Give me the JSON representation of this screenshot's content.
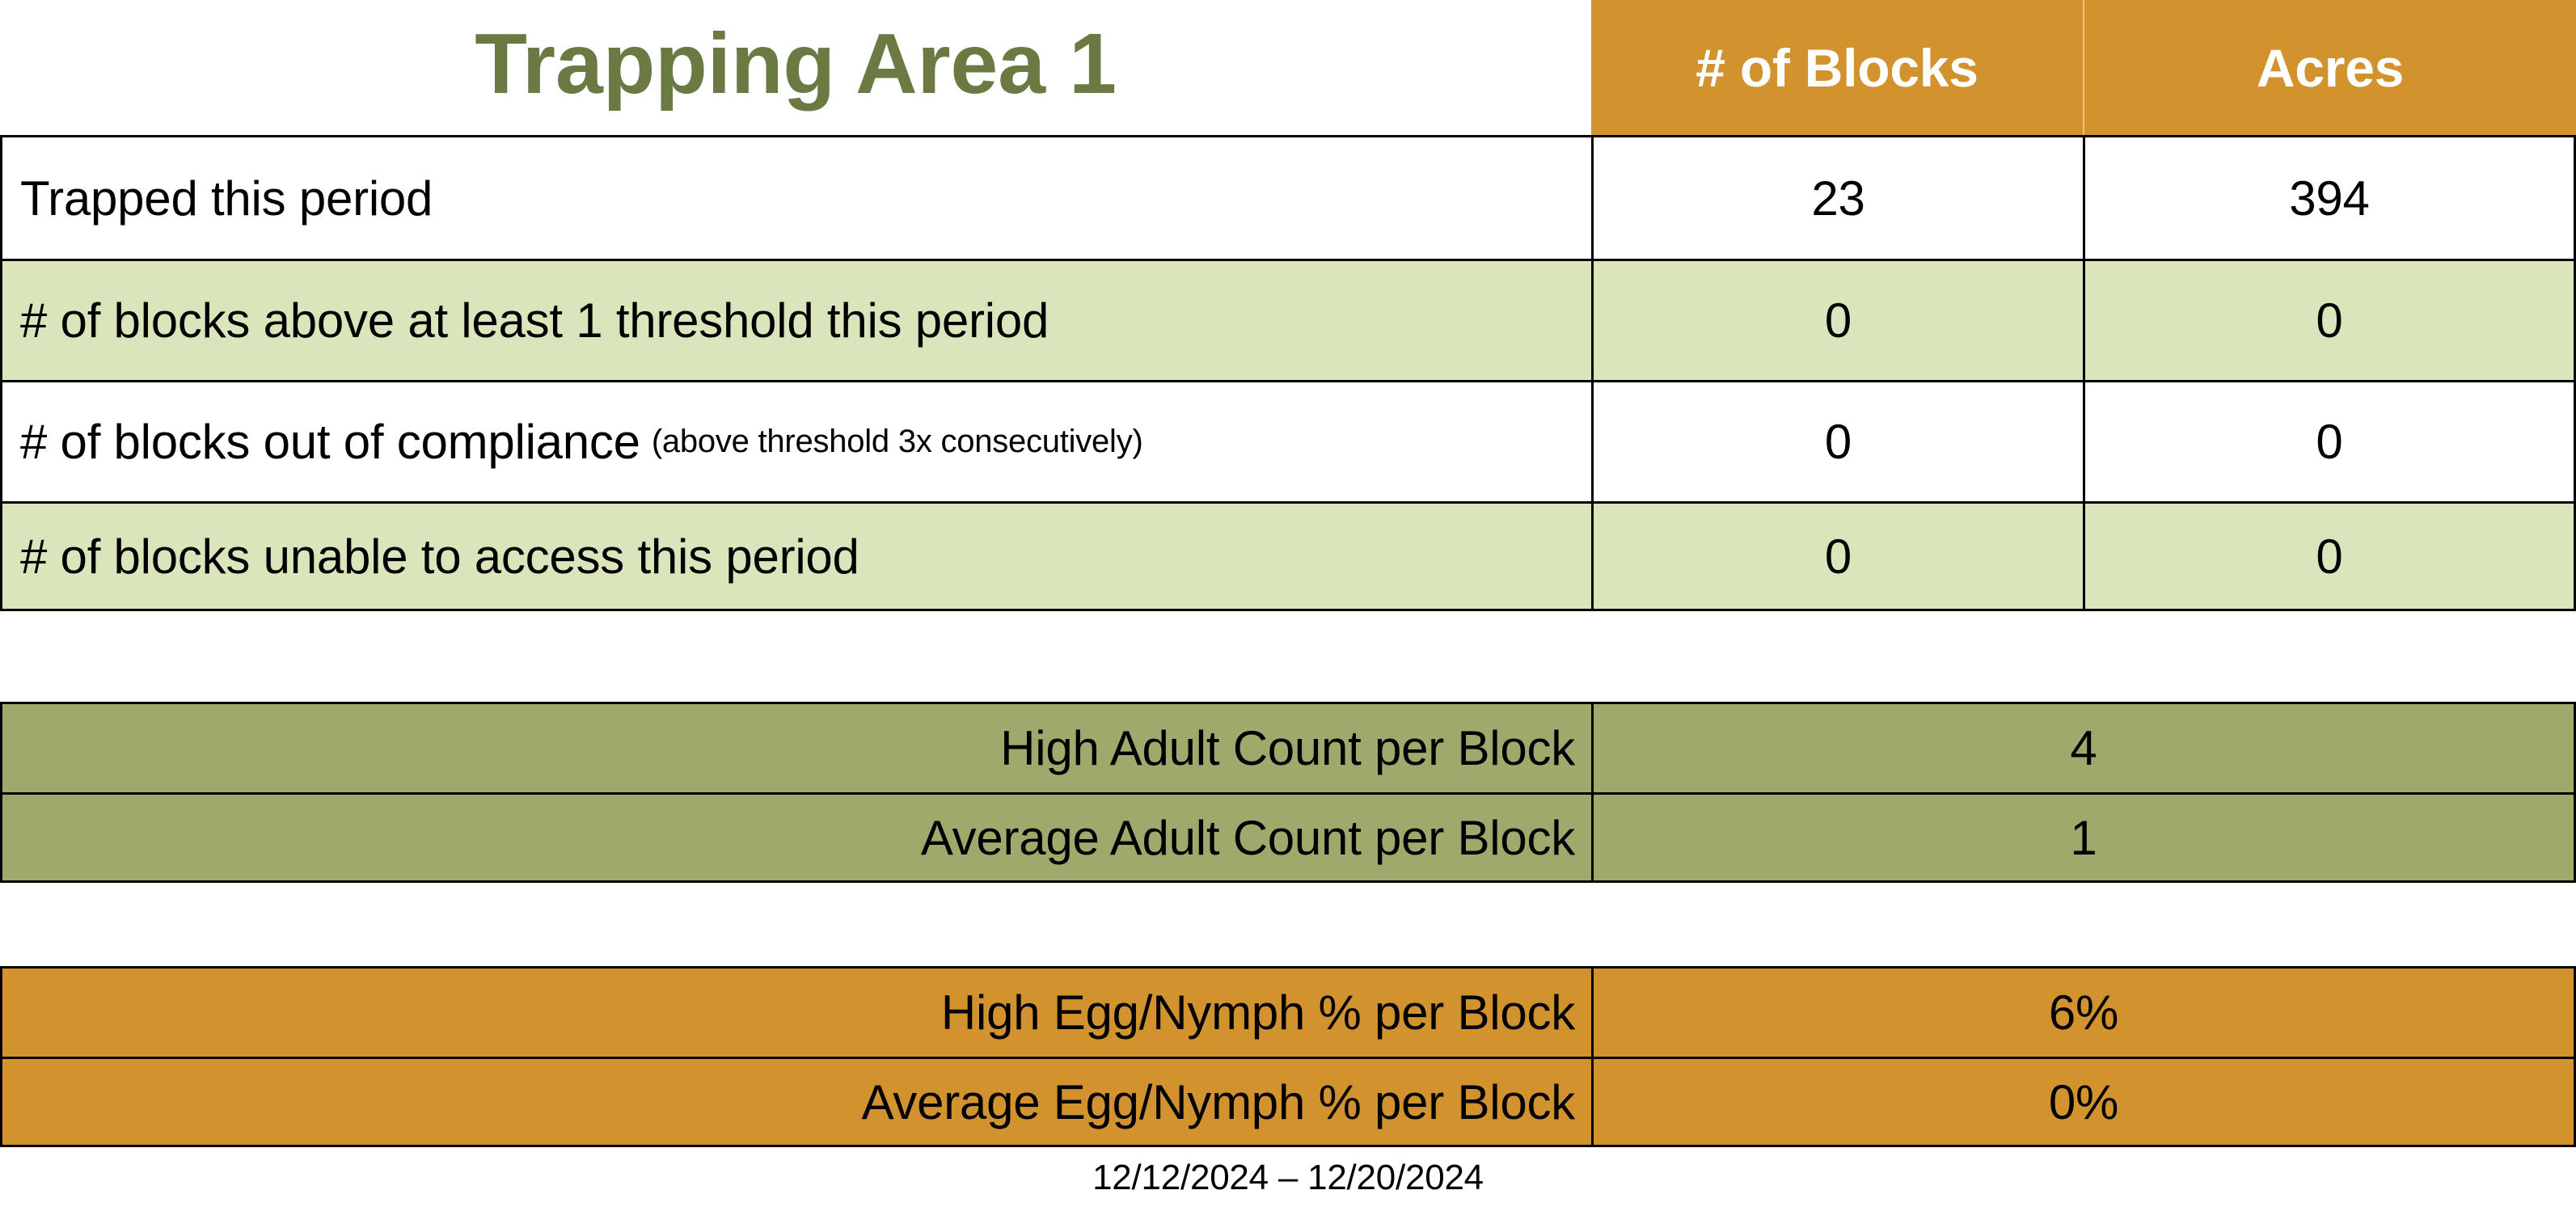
{
  "colors": {
    "orange": "#D2922E",
    "light-green": "#DAE5BB",
    "olive": "#9DAA6C",
    "title-green": "#6B7A43",
    "header-text": "#FFFFFF",
    "border": "#000000",
    "text": "#000000"
  },
  "header": {
    "title": "Trapping Area 1",
    "col_blocks": "# of Blocks",
    "col_acres": "Acres"
  },
  "summary_table": {
    "rows": [
      {
        "label": "Trapped this period",
        "note": "",
        "blocks": "23",
        "acres": "394"
      },
      {
        "label": "# of blocks above at least 1 threshold this period",
        "note": "",
        "blocks": "0",
        "acres": "0"
      },
      {
        "label": "# of blocks out of compliance",
        "note": "(above threshold 3x consecutively)",
        "blocks": "0",
        "acres": "0"
      },
      {
        "label": "# of blocks unable to access this period",
        "note": "",
        "blocks": "0",
        "acres": "0"
      }
    ]
  },
  "adult_table": {
    "rows": [
      {
        "label": "High Adult Count per Block",
        "value": "4"
      },
      {
        "label": "Average Adult Count per Block",
        "value": "1"
      }
    ]
  },
  "egg_table": {
    "rows": [
      {
        "label": "High Egg/Nymph % per Block",
        "value": "6%"
      },
      {
        "label": "Average Egg/Nymph % per Block",
        "value": "0%"
      }
    ]
  },
  "footer": {
    "date_range": "12/12/2024 – 12/20/2024"
  }
}
